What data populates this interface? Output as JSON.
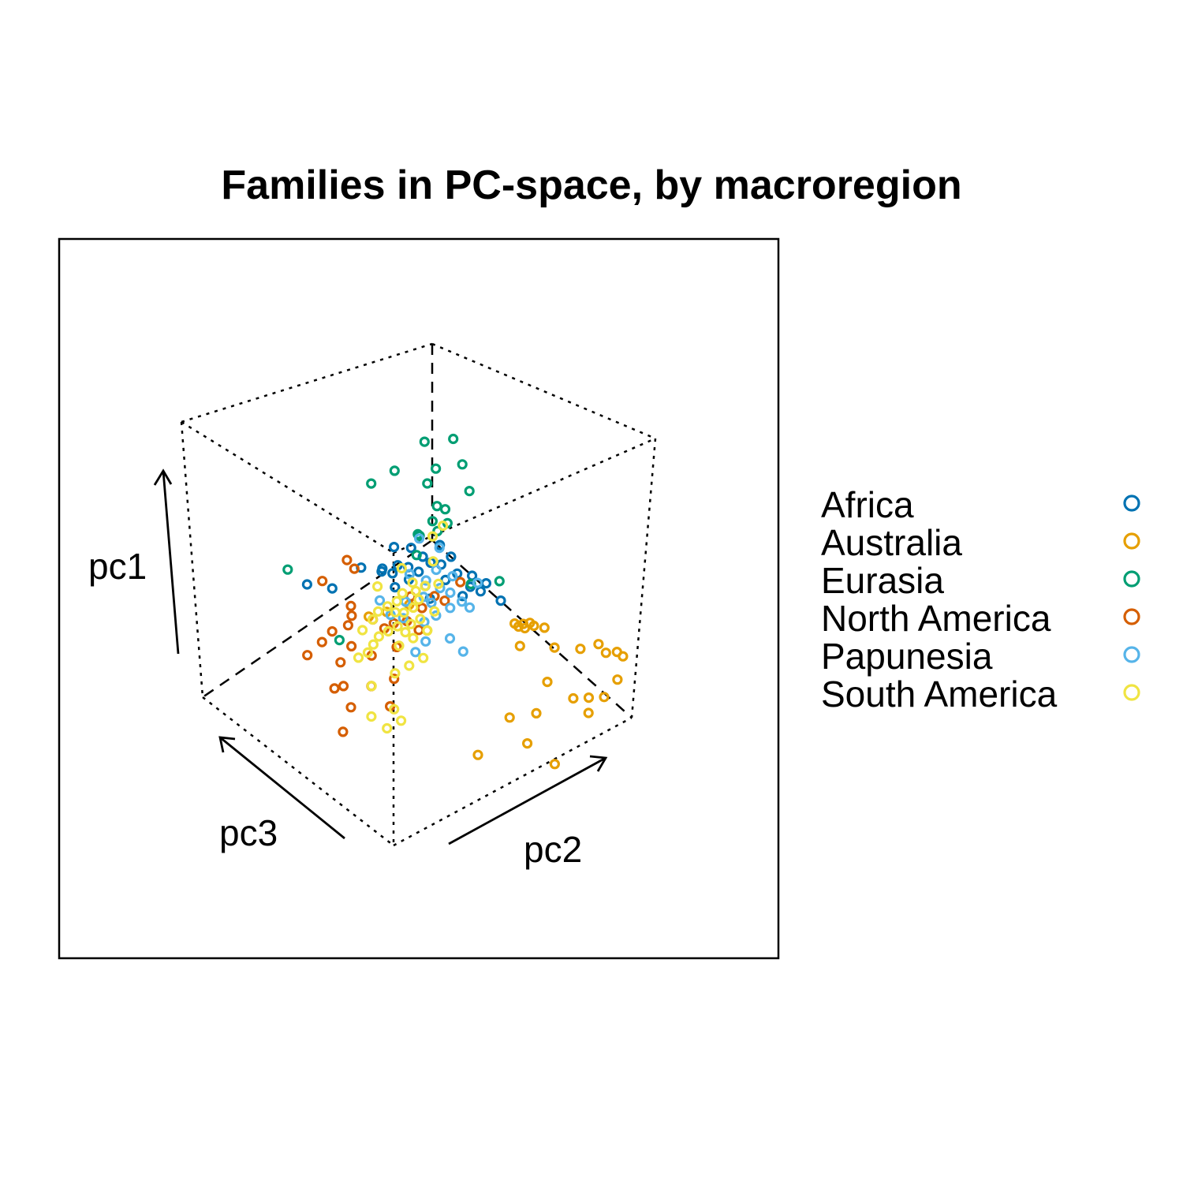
{
  "chart_data": {
    "type": "scatter",
    "projection": "3d",
    "title": "Families in PC-space, by macroregion",
    "axes": {
      "x": "pc2",
      "y": "pc1",
      "z": "pc3"
    },
    "axis_arrows": true,
    "grid": false,
    "legend_position": "right",
    "xlim": [
      0,
      1
    ],
    "ylim": [
      0,
      1
    ],
    "zlim": [
      0,
      1
    ],
    "series": [
      {
        "name": "Africa",
        "color": "#0072B2",
        "points": [
          [
            0.34,
            0.58,
            0.52
          ],
          [
            0.37,
            0.57,
            0.5
          ],
          [
            0.3,
            0.56,
            0.55
          ],
          [
            0.33,
            0.54,
            0.58
          ],
          [
            0.41,
            0.6,
            0.48
          ],
          [
            0.39,
            0.62,
            0.52
          ],
          [
            0.43,
            0.58,
            0.46
          ],
          [
            0.46,
            0.57,
            0.44
          ],
          [
            0.31,
            0.51,
            0.66
          ],
          [
            0.36,
            0.52,
            0.56
          ],
          [
            0.25,
            0.43,
            0.72
          ],
          [
            0.21,
            0.42,
            0.8
          ],
          [
            0.5,
            0.54,
            0.4
          ],
          [
            0.53,
            0.5,
            0.36
          ],
          [
            0.56,
            0.48,
            0.34
          ],
          [
            0.6,
            0.46,
            0.28
          ],
          [
            0.4,
            0.5,
            0.52
          ],
          [
            0.44,
            0.48,
            0.48
          ],
          [
            0.47,
            0.52,
            0.42
          ],
          [
            0.38,
            0.46,
            0.56
          ],
          [
            0.35,
            0.62,
            0.56
          ],
          [
            0.48,
            0.61,
            0.48
          ],
          [
            0.52,
            0.46,
            0.38
          ],
          [
            0.45,
            0.44,
            0.46
          ],
          [
            0.42,
            0.53,
            0.5
          ],
          [
            0.55,
            0.52,
            0.38
          ],
          [
            0.58,
            0.5,
            0.34
          ],
          [
            0.5,
            0.58,
            0.44
          ]
        ]
      },
      {
        "name": "Australia",
        "color": "#E69F00",
        "points": [
          [
            0.8,
            0.3,
            0.08
          ],
          [
            0.86,
            0.3,
            0.06
          ],
          [
            0.88,
            0.27,
            0.04
          ],
          [
            0.95,
            0.23,
            0.03
          ],
          [
            0.92,
            0.26,
            0.03
          ],
          [
            0.72,
            0.32,
            0.12
          ],
          [
            0.69,
            0.22,
            0.1
          ],
          [
            0.78,
            0.14,
            0.06
          ],
          [
            0.84,
            0.12,
            0.05
          ],
          [
            0.9,
            0.1,
            0.04
          ],
          [
            0.93,
            0.16,
            0.02
          ],
          [
            0.66,
            0.12,
            0.1
          ],
          [
            0.58,
            0.12,
            0.14
          ],
          [
            0.6,
            0.06,
            0.06
          ],
          [
            0.46,
            0.04,
            0.14
          ],
          [
            0.68,
            -0.02,
            0.0
          ],
          [
            0.82,
            0.09,
            0.02
          ],
          [
            0.62,
            0.4,
            0.22
          ],
          [
            0.64,
            0.4,
            0.2
          ],
          [
            0.66,
            0.4,
            0.19
          ],
          [
            0.65,
            0.38,
            0.2
          ],
          [
            0.67,
            0.39,
            0.18
          ],
          [
            0.62,
            0.34,
            0.18
          ],
          [
            0.7,
            0.38,
            0.16
          ],
          [
            0.63,
            0.39,
            0.21
          ],
          [
            0.3,
            0.44,
            0.5
          ],
          [
            0.36,
            0.46,
            0.46
          ],
          [
            0.28,
            0.4,
            0.56
          ],
          [
            0.4,
            0.38,
            0.4
          ]
        ]
      },
      {
        "name": "Eurasia",
        "color": "#009E73",
        "points": [
          [
            0.46,
            0.93,
            0.6
          ],
          [
            0.55,
            0.92,
            0.56
          ],
          [
            0.55,
            0.86,
            0.5
          ],
          [
            0.49,
            0.84,
            0.56
          ],
          [
            0.4,
            0.82,
            0.66
          ],
          [
            0.48,
            0.78,
            0.58
          ],
          [
            0.58,
            0.76,
            0.48
          ],
          [
            0.36,
            0.76,
            0.72
          ],
          [
            0.5,
            0.71,
            0.54
          ],
          [
            0.52,
            0.7,
            0.52
          ],
          [
            0.47,
            0.68,
            0.52
          ],
          [
            0.52,
            0.66,
            0.5
          ],
          [
            0.48,
            0.65,
            0.5
          ],
          [
            0.45,
            0.62,
            0.56
          ],
          [
            0.4,
            0.6,
            0.5
          ],
          [
            0.17,
            0.46,
            0.86
          ],
          [
            0.2,
            0.33,
            0.6
          ],
          [
            0.62,
            0.5,
            0.32
          ],
          [
            0.55,
            0.49,
            0.38
          ],
          [
            0.44,
            0.63,
            0.54
          ]
        ]
      },
      {
        "name": "North America",
        "color": "#D55E00",
        "points": [
          [
            0.26,
            0.55,
            0.68
          ],
          [
            0.28,
            0.52,
            0.66
          ],
          [
            0.2,
            0.48,
            0.72
          ],
          [
            0.25,
            0.42,
            0.62
          ],
          [
            0.24,
            0.4,
            0.6
          ],
          [
            0.3,
            0.38,
            0.56
          ],
          [
            0.32,
            0.36,
            0.52
          ],
          [
            0.34,
            0.38,
            0.5
          ],
          [
            0.2,
            0.34,
            0.64
          ],
          [
            0.22,
            0.32,
            0.56
          ],
          [
            0.18,
            0.3,
            0.66
          ],
          [
            0.2,
            0.26,
            0.58
          ],
          [
            0.16,
            0.24,
            0.7
          ],
          [
            0.19,
            0.2,
            0.54
          ],
          [
            0.17,
            0.19,
            0.56
          ],
          [
            0.24,
            0.22,
            0.46
          ],
          [
            0.18,
            0.16,
            0.48
          ],
          [
            0.28,
            0.16,
            0.4
          ],
          [
            0.3,
            0.24,
            0.42
          ],
          [
            0.33,
            0.32,
            0.46
          ],
          [
            0.4,
            0.36,
            0.44
          ],
          [
            0.42,
            0.42,
            0.46
          ],
          [
            0.45,
            0.46,
            0.44
          ],
          [
            0.48,
            0.44,
            0.42
          ],
          [
            0.52,
            0.5,
            0.4
          ],
          [
            0.4,
            0.45,
            0.5
          ],
          [
            0.14,
            0.1,
            0.46
          ],
          [
            0.26,
            0.3,
            0.5
          ],
          [
            0.36,
            0.4,
            0.46
          ],
          [
            0.23,
            0.37,
            0.6
          ]
        ]
      },
      {
        "name": "Papunesia",
        "color": "#56B4E9",
        "points": [
          [
            0.44,
            0.62,
            0.54
          ],
          [
            0.48,
            0.6,
            0.48
          ],
          [
            0.4,
            0.52,
            0.52
          ],
          [
            0.44,
            0.5,
            0.48
          ],
          [
            0.47,
            0.48,
            0.44
          ],
          [
            0.5,
            0.46,
            0.42
          ],
          [
            0.52,
            0.44,
            0.38
          ],
          [
            0.54,
            0.42,
            0.36
          ],
          [
            0.49,
            0.42,
            0.4
          ],
          [
            0.45,
            0.4,
            0.42
          ],
          [
            0.42,
            0.38,
            0.44
          ],
          [
            0.4,
            0.34,
            0.4
          ],
          [
            0.47,
            0.34,
            0.36
          ],
          [
            0.5,
            0.3,
            0.32
          ],
          [
            0.38,
            0.3,
            0.42
          ],
          [
            0.36,
            0.4,
            0.48
          ],
          [
            0.32,
            0.42,
            0.5
          ],
          [
            0.3,
            0.46,
            0.54
          ],
          [
            0.56,
            0.5,
            0.36
          ],
          [
            0.46,
            0.54,
            0.46
          ],
          [
            0.42,
            0.46,
            0.46
          ],
          [
            0.38,
            0.44,
            0.5
          ],
          [
            0.44,
            0.44,
            0.44
          ],
          [
            0.5,
            0.52,
            0.42
          ]
        ]
      },
      {
        "name": "South America",
        "color": "#F0E442",
        "points": [
          [
            0.38,
            0.52,
            0.48
          ],
          [
            0.42,
            0.5,
            0.46
          ],
          [
            0.36,
            0.48,
            0.5
          ],
          [
            0.34,
            0.46,
            0.5
          ],
          [
            0.4,
            0.46,
            0.46
          ],
          [
            0.38,
            0.44,
            0.46
          ],
          [
            0.36,
            0.42,
            0.48
          ],
          [
            0.34,
            0.42,
            0.5
          ],
          [
            0.32,
            0.44,
            0.52
          ],
          [
            0.3,
            0.42,
            0.54
          ],
          [
            0.28,
            0.4,
            0.54
          ],
          [
            0.34,
            0.38,
            0.48
          ],
          [
            0.38,
            0.38,
            0.46
          ],
          [
            0.4,
            0.4,
            0.44
          ],
          [
            0.36,
            0.36,
            0.46
          ],
          [
            0.32,
            0.36,
            0.5
          ],
          [
            0.3,
            0.34,
            0.52
          ],
          [
            0.28,
            0.32,
            0.52
          ],
          [
            0.26,
            0.3,
            0.52
          ],
          [
            0.34,
            0.32,
            0.46
          ],
          [
            0.38,
            0.34,
            0.44
          ],
          [
            0.42,
            0.36,
            0.42
          ],
          [
            0.44,
            0.42,
            0.42
          ],
          [
            0.46,
            0.5,
            0.44
          ],
          [
            0.48,
            0.62,
            0.52
          ],
          [
            0.52,
            0.64,
            0.52
          ],
          [
            0.46,
            0.56,
            0.48
          ],
          [
            0.36,
            0.56,
            0.52
          ],
          [
            0.3,
            0.5,
            0.56
          ],
          [
            0.26,
            0.36,
            0.56
          ],
          [
            0.24,
            0.28,
            0.54
          ],
          [
            0.26,
            0.2,
            0.48
          ],
          [
            0.32,
            0.24,
            0.44
          ],
          [
            0.36,
            0.26,
            0.42
          ],
          [
            0.4,
            0.28,
            0.4
          ],
          [
            0.3,
            0.14,
            0.4
          ],
          [
            0.32,
            0.1,
            0.38
          ],
          [
            0.28,
            0.08,
            0.4
          ],
          [
            0.24,
            0.12,
            0.44
          ],
          [
            0.4,
            0.48,
            0.48
          ]
        ]
      }
    ]
  }
}
